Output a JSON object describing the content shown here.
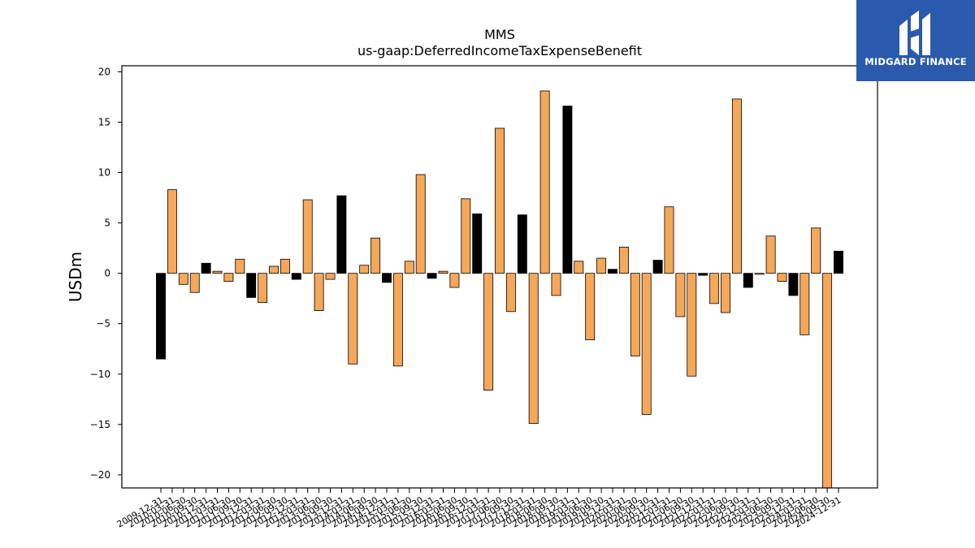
{
  "brand": {
    "name": "MIDGARD FINANCE",
    "bg_color": "#2b5aad"
  },
  "chart_data": {
    "type": "bar",
    "title": "MMS",
    "subtitle": "us-gaap:DeferredIncomeTaxExpenseBenefit",
    "ylabel": "USDm",
    "xlabel": "",
    "ylim": [
      -21.3,
      20.6
    ],
    "yticks": [
      -20,
      -15,
      -10,
      -5,
      0,
      5,
      10,
      15,
      20
    ],
    "grid": false,
    "colors": {
      "annual": "#000000",
      "quarterly": "#f5a85a",
      "edge": "#000000"
    },
    "categories": [
      "2009-12-31",
      "2010-03-31",
      "2010-06-30",
      "2010-09-30",
      "2010-12-31",
      "2011-03-31",
      "2011-06-30",
      "2011-09-30",
      "2011-12-31",
      "2012-03-31",
      "2012-06-30",
      "2012-09-30",
      "2012-12-31",
      "2013-03-31",
      "2013-06-30",
      "2013-09-30",
      "2013-12-31",
      "2014-03-31",
      "2014-06-30",
      "2014-09-30",
      "2014-12-31",
      "2015-03-31",
      "2015-06-30",
      "2015-09-30",
      "2015-12-31",
      "2016-03-31",
      "2016-06-30",
      "2016-09-30",
      "2016-12-31",
      "2017-03-31",
      "2017-06-30",
      "2017-09-30",
      "2017-12-31",
      "2018-03-31",
      "2018-06-30",
      "2018-09-30",
      "2018-12-31",
      "2019-03-31",
      "2019-06-30",
      "2019-09-30",
      "2019-12-31",
      "2020-03-31",
      "2020-06-30",
      "2020-09-30",
      "2020-12-31",
      "2021-03-31",
      "2021-06-30",
      "2021-09-30",
      "2021-12-31",
      "2022-03-31",
      "2022-06-30",
      "2022-09-30",
      "2022-12-31",
      "2023-03-31",
      "2023-06-30",
      "2023-09-30",
      "2023-12-31",
      "2024-03-31",
      "2024-06-30",
      "2024-09-30",
      "2024-12-31"
    ],
    "values": [
      -8.5,
      8.3,
      -1.1,
      -1.9,
      1.0,
      0.2,
      -0.8,
      1.4,
      -2.4,
      -2.9,
      0.7,
      1.4,
      -0.6,
      7.3,
      -3.7,
      -0.6,
      7.7,
      -9.0,
      0.8,
      3.5,
      -0.9,
      -9.2,
      1.2,
      9.8,
      -0.5,
      0.2,
      -1.4,
      7.4,
      5.9,
      -11.6,
      14.4,
      -3.8,
      5.8,
      -14.9,
      18.1,
      -2.2,
      16.6,
      1.2,
      -6.6,
      1.5,
      0.4,
      2.6,
      -8.2,
      -14.0,
      1.3,
      6.6,
      -4.3,
      -10.2,
      -0.2,
      -3.0,
      -3.9,
      17.3,
      -1.4,
      -0.1,
      3.7,
      -0.8,
      -2.2,
      -6.1,
      4.5,
      -21.3,
      2.2
    ],
    "bar_kind": [
      "annual",
      "quarterly",
      "quarterly",
      "quarterly",
      "annual",
      "quarterly",
      "quarterly",
      "quarterly",
      "annual",
      "quarterly",
      "quarterly",
      "quarterly",
      "annual",
      "quarterly",
      "quarterly",
      "quarterly",
      "annual",
      "quarterly",
      "quarterly",
      "quarterly",
      "annual",
      "quarterly",
      "quarterly",
      "quarterly",
      "annual",
      "quarterly",
      "quarterly",
      "quarterly",
      "annual",
      "quarterly",
      "quarterly",
      "quarterly",
      "annual",
      "quarterly",
      "quarterly",
      "quarterly",
      "annual",
      "quarterly",
      "quarterly",
      "quarterly",
      "annual",
      "quarterly",
      "quarterly",
      "quarterly",
      "annual",
      "quarterly",
      "quarterly",
      "quarterly",
      "annual",
      "quarterly",
      "quarterly",
      "quarterly",
      "annual",
      "quarterly",
      "quarterly",
      "quarterly",
      "annual",
      "quarterly",
      "quarterly",
      "quarterly",
      "annual"
    ]
  }
}
